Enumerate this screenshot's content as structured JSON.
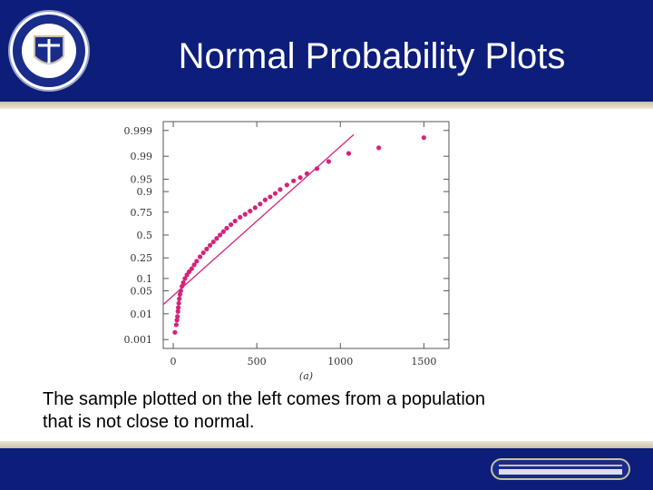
{
  "slide": {
    "title": "Normal Probability Plots",
    "caption_line1": "The sample plotted on the left comes from a population",
    "caption_line2": "that is not close to normal.",
    "header_color": "#0d1d7a",
    "accent_color": "#d4237a"
  },
  "chart_data": {
    "type": "scatter",
    "title": "",
    "xlabel": "(a)",
    "ylabel": "",
    "x_ticks": [
      0,
      500,
      1000,
      1500
    ],
    "xlim": [
      -60,
      1650
    ],
    "y_probability_ticks": [
      "0.001",
      "0.01",
      "0.05",
      "0.1",
      "0.25",
      "0.5",
      "0.75",
      "0.9",
      "0.95",
      "0.99",
      "0.999"
    ],
    "y_scale": "normal probability",
    "reference_line": [
      {
        "x": -60,
        "p": 0.02
      },
      {
        "x": 1080,
        "p": 0.9985
      }
    ],
    "points": [
      {
        "x": 10,
        "p": 0.002
      },
      {
        "x": 18,
        "p": 0.004
      },
      {
        "x": 22,
        "p": 0.006
      },
      {
        "x": 25,
        "p": 0.008
      },
      {
        "x": 28,
        "p": 0.012
      },
      {
        "x": 30,
        "p": 0.016
      },
      {
        "x": 33,
        "p": 0.022
      },
      {
        "x": 36,
        "p": 0.03
      },
      {
        "x": 40,
        "p": 0.04
      },
      {
        "x": 45,
        "p": 0.05
      },
      {
        "x": 52,
        "p": 0.065
      },
      {
        "x": 60,
        "p": 0.08
      },
      {
        "x": 70,
        "p": 0.1
      },
      {
        "x": 82,
        "p": 0.12
      },
      {
        "x": 95,
        "p": 0.14
      },
      {
        "x": 110,
        "p": 0.16
      },
      {
        "x": 125,
        "p": 0.19
      },
      {
        "x": 140,
        "p": 0.22
      },
      {
        "x": 160,
        "p": 0.26
      },
      {
        "x": 180,
        "p": 0.3
      },
      {
        "x": 200,
        "p": 0.34
      },
      {
        "x": 220,
        "p": 0.38
      },
      {
        "x": 240,
        "p": 0.42
      },
      {
        "x": 260,
        "p": 0.46
      },
      {
        "x": 280,
        "p": 0.5
      },
      {
        "x": 300,
        "p": 0.54
      },
      {
        "x": 320,
        "p": 0.58
      },
      {
        "x": 345,
        "p": 0.62
      },
      {
        "x": 370,
        "p": 0.66
      },
      {
        "x": 400,
        "p": 0.7
      },
      {
        "x": 430,
        "p": 0.73
      },
      {
        "x": 460,
        "p": 0.76
      },
      {
        "x": 490,
        "p": 0.79
      },
      {
        "x": 520,
        "p": 0.82
      },
      {
        "x": 550,
        "p": 0.85
      },
      {
        "x": 580,
        "p": 0.87
      },
      {
        "x": 610,
        "p": 0.89
      },
      {
        "x": 640,
        "p": 0.91
      },
      {
        "x": 680,
        "p": 0.93
      },
      {
        "x": 720,
        "p": 0.945
      },
      {
        "x": 760,
        "p": 0.955
      },
      {
        "x": 800,
        "p": 0.965
      },
      {
        "x": 860,
        "p": 0.975
      },
      {
        "x": 930,
        "p": 0.985
      },
      {
        "x": 1050,
        "p": 0.992
      },
      {
        "x": 1230,
        "p": 0.995
      },
      {
        "x": 1500,
        "p": 0.998
      }
    ]
  }
}
